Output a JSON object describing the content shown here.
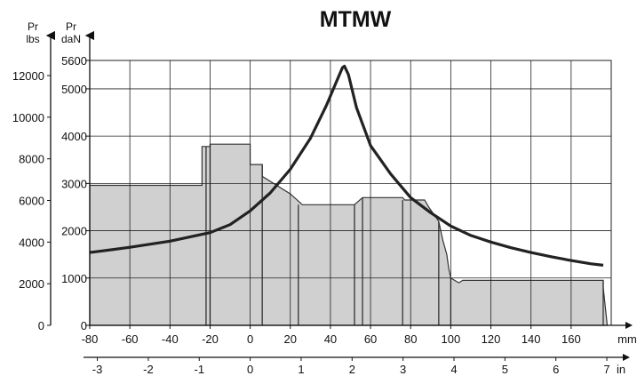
{
  "chart_data": {
    "type": "area",
    "title": "MTMW",
    "colors": {
      "area_fill": "#d0d0d0",
      "line": "#222222",
      "grid": "#222222"
    },
    "x_axis_mm": {
      "unit": "mm",
      "range": [
        -80,
        180
      ],
      "ticks": [
        "-80",
        "-60",
        "-40",
        "-20",
        "0",
        "20",
        "40",
        "60",
        "80",
        "100",
        "120",
        "140",
        "160"
      ],
      "tick_values": [
        -80,
        -60,
        -40,
        -20,
        0,
        20,
        40,
        60,
        80,
        100,
        120,
        140,
        160
      ]
    },
    "x_axis_in": {
      "unit": "in",
      "ticks": [
        "-3",
        "-2",
        "-1",
        "0",
        "1",
        "2",
        "3",
        "4",
        "5",
        "6",
        "7"
      ],
      "tick_values": [
        -3,
        -2,
        -1,
        0,
        1,
        2,
        3,
        4,
        5,
        6,
        7
      ]
    },
    "y_axis_dan": {
      "label_top": "Pr",
      "label_bottom": "daN",
      "range": [
        0,
        5600
      ],
      "ticks": [
        "0",
        "1000",
        "2000",
        "3000",
        "4000",
        "5000",
        "5600"
      ],
      "tick_values": [
        0,
        1000,
        2000,
        3000,
        4000,
        5000,
        5600
      ]
    },
    "y_axis_lbs": {
      "label_top": "Pr",
      "label_bottom": "lbs",
      "ticks": [
        "0",
        "2000",
        "4000",
        "6000",
        "8000",
        "10000",
        "12000"
      ],
      "tick_values": [
        0,
        2000,
        4000,
        6000,
        8000,
        10000,
        12000
      ]
    },
    "grid": true,
    "area_profile_mm_dan": [
      [
        -80,
        0
      ],
      [
        -80,
        2960
      ],
      [
        -24,
        2960
      ],
      [
        -24,
        3780
      ],
      [
        -20,
        3780
      ],
      [
        -20,
        3830
      ],
      [
        0,
        3830
      ],
      [
        0,
        3400
      ],
      [
        6,
        3400
      ],
      [
        6,
        3150
      ],
      [
        20,
        2780
      ],
      [
        26,
        2550
      ],
      [
        52,
        2550
      ],
      [
        56,
        2700
      ],
      [
        76,
        2700
      ],
      [
        77,
        2650
      ],
      [
        87,
        2650
      ],
      [
        89,
        2500
      ],
      [
        94,
        2200
      ],
      [
        96,
        1800
      ],
      [
        98,
        1500
      ],
      [
        99,
        1200
      ],
      [
        100,
        1000
      ],
      [
        104,
        900
      ],
      [
        106,
        950
      ],
      [
        176,
        950
      ],
      [
        176,
        800
      ],
      [
        178,
        0
      ]
    ],
    "curve_mm_dan": [
      [
        -80,
        1540
      ],
      [
        -60,
        1650
      ],
      [
        -40,
        1780
      ],
      [
        -20,
        1960
      ],
      [
        -10,
        2130
      ],
      [
        0,
        2420
      ],
      [
        10,
        2800
      ],
      [
        20,
        3300
      ],
      [
        30,
        3950
      ],
      [
        38,
        4650
      ],
      [
        43,
        5150
      ],
      [
        46,
        5450
      ],
      [
        47,
        5480
      ],
      [
        49,
        5300
      ],
      [
        53,
        4600
      ],
      [
        60,
        3800
      ],
      [
        70,
        3200
      ],
      [
        80,
        2700
      ],
      [
        90,
        2380
      ],
      [
        100,
        2100
      ],
      [
        110,
        1900
      ],
      [
        120,
        1760
      ],
      [
        130,
        1640
      ],
      [
        140,
        1540
      ],
      [
        150,
        1450
      ],
      [
        160,
        1370
      ],
      [
        170,
        1300
      ],
      [
        176,
        1270
      ]
    ]
  }
}
